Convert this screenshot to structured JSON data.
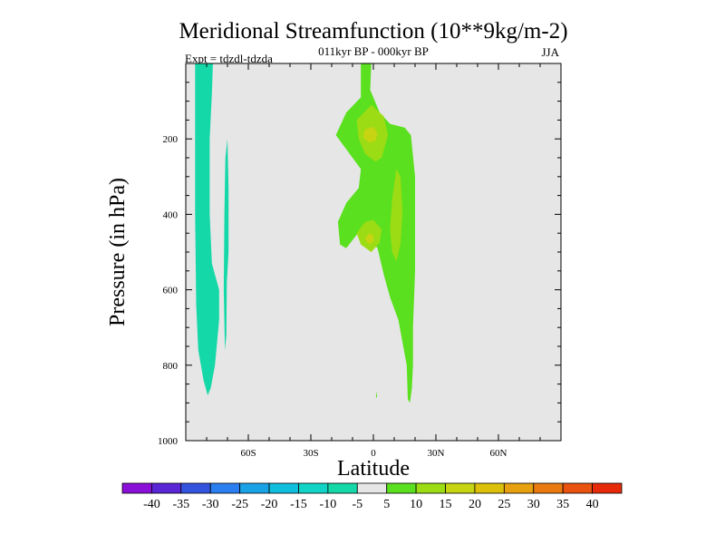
{
  "chart_data": {
    "type": "contour",
    "title": "Meridional Streamfunction (10**9kg/m-2)",
    "subtitle": "011kyr BP - 000kyr BP",
    "expt_label": "Expt = tdzdl-tdzda",
    "season": "JJA",
    "xlabel": "Latitude",
    "ylabel": "Pressure (in hPa)",
    "xlim": [
      -90,
      90
    ],
    "ylim": [
      1000,
      0
    ],
    "x_ticks": [
      {
        "value": -60,
        "label": "60S"
      },
      {
        "value": -30,
        "label": "30S"
      },
      {
        "value": 0,
        "label": "0"
      },
      {
        "value": 30,
        "label": "30N"
      },
      {
        "value": 60,
        "label": "60N"
      }
    ],
    "y_ticks": [
      {
        "value": 200,
        "label": "200"
      },
      {
        "value": 400,
        "label": "400"
      },
      {
        "value": 600,
        "label": "600"
      },
      {
        "value": 800,
        "label": "800"
      },
      {
        "value": 1000,
        "label": "1000"
      }
    ],
    "background_color": "#e6e6e6",
    "colorbar": {
      "labels": [
        "-40",
        "-35",
        "-30",
        "-25",
        "-20",
        "-15",
        "-10",
        "-5",
        "5",
        "10",
        "15",
        "20",
        "25",
        "30",
        "35",
        "40"
      ],
      "colors": [
        "#8a10d8",
        "#5a26d6",
        "#3454e0",
        "#2a7ef0",
        "#1aa2e6",
        "#10bede",
        "#12d4c6",
        "#14d8a8",
        "#e6e6e6",
        "#5ae01e",
        "#9cdc14",
        "#c6d412",
        "#dcc00a",
        "#e6a010",
        "#ea7a10",
        "#ea5210",
        "#e62a0a"
      ]
    },
    "regions": [
      {
        "name": "southern-cell-main",
        "value_range": "-10 to -5",
        "color": "#14d8a8",
        "points": [
          [
            -85.5,
            0
          ],
          [
            -77,
            0
          ],
          [
            -77.5,
            80
          ],
          [
            -78.5,
            200
          ],
          [
            -78.5,
            400
          ],
          [
            -77.5,
            530
          ],
          [
            -75,
            580
          ],
          [
            -74,
            600
          ],
          [
            -74,
            680
          ],
          [
            -76,
            800
          ],
          [
            -78,
            860
          ],
          [
            -79.5,
            880
          ],
          [
            -81.5,
            840
          ],
          [
            -84,
            760
          ],
          [
            -85,
            640
          ],
          [
            -85.5,
            400
          ],
          [
            -85.5,
            200
          ]
        ]
      },
      {
        "name": "southern-cell-strip",
        "value_range": "-10 to -5",
        "color": "#14d8a8",
        "points": [
          [
            -70,
            200
          ],
          [
            -69.5,
            330
          ],
          [
            -69.5,
            500
          ],
          [
            -70.3,
            580
          ],
          [
            -70.5,
            720
          ],
          [
            -71.2,
            760
          ],
          [
            -71.8,
            600
          ],
          [
            -71.5,
            400
          ],
          [
            -71,
            250
          ]
        ]
      },
      {
        "name": "northern-cell-outer",
        "value_range": "5 to 10",
        "color": "#5ae01e",
        "points": [
          [
            -6,
            0
          ],
          [
            -1,
            0
          ],
          [
            -1.5,
            70
          ],
          [
            3,
            130
          ],
          [
            8,
            160
          ],
          [
            15,
            170
          ],
          [
            18,
            190
          ],
          [
            20,
            300
          ],
          [
            20,
            550
          ],
          [
            19,
            700
          ],
          [
            19,
            800
          ],
          [
            18.5,
            860
          ],
          [
            17.5,
            900
          ],
          [
            16.5,
            890
          ],
          [
            16,
            800
          ],
          [
            12,
            680
          ],
          [
            8,
            620
          ],
          [
            5,
            560
          ],
          [
            2,
            490
          ],
          [
            -3,
            460
          ],
          [
            -6,
            440
          ],
          [
            -13,
            490
          ],
          [
            -16,
            480
          ],
          [
            -17,
            420
          ],
          [
            -13,
            370
          ],
          [
            -7,
            330
          ],
          [
            -6,
            280
          ],
          [
            -10,
            250
          ],
          [
            -18,
            190
          ],
          [
            -13,
            130
          ],
          [
            -6,
            90
          ]
        ]
      },
      {
        "name": "upper-core-10-15",
        "value_range": "10 to 15",
        "color": "#9cdc14",
        "points": [
          [
            -1,
            110
          ],
          [
            -8,
            150
          ],
          [
            -7,
            200
          ],
          [
            -4,
            240
          ],
          [
            1,
            260
          ],
          [
            4,
            250
          ],
          [
            7,
            190
          ],
          [
            5,
            140
          ]
        ]
      },
      {
        "name": "upper-core-15-20",
        "value_range": "15 to 20",
        "color": "#c6d412",
        "points": [
          [
            -4,
            175
          ],
          [
            -5,
            195
          ],
          [
            -2,
            210
          ],
          [
            1,
            205
          ],
          [
            2,
            185
          ],
          [
            0,
            168
          ]
        ]
      },
      {
        "name": "mid-core-10-15",
        "value_range": "10 to 15",
        "color": "#9cdc14",
        "points": [
          [
            -4,
            420
          ],
          [
            -8,
            450
          ],
          [
            -6,
            480
          ],
          [
            -1,
            500
          ],
          [
            3,
            475
          ],
          [
            4,
            440
          ],
          [
            0,
            415
          ]
        ]
      },
      {
        "name": "mid-core-15-20",
        "value_range": "15 to 20",
        "color": "#c6d412",
        "points": [
          [
            -2,
            450
          ],
          [
            -4,
            465
          ],
          [
            -2,
            480
          ],
          [
            0,
            472
          ],
          [
            0,
            455
          ]
        ]
      },
      {
        "name": "right-core-10-15",
        "value_range": "10 to 15",
        "color": "#9cdc14",
        "points": [
          [
            11,
            280
          ],
          [
            9,
            360
          ],
          [
            8,
            440
          ],
          [
            9,
            500
          ],
          [
            11,
            525
          ],
          [
            13,
            480
          ],
          [
            14,
            390
          ],
          [
            13,
            300
          ]
        ]
      },
      {
        "name": "surface-speck",
        "value_range": "5 to 10",
        "color": "#5ae01e",
        "points": [
          [
            1.5,
            868
          ],
          [
            1.2,
            885
          ],
          [
            1.8,
            885
          ]
        ]
      }
    ]
  }
}
